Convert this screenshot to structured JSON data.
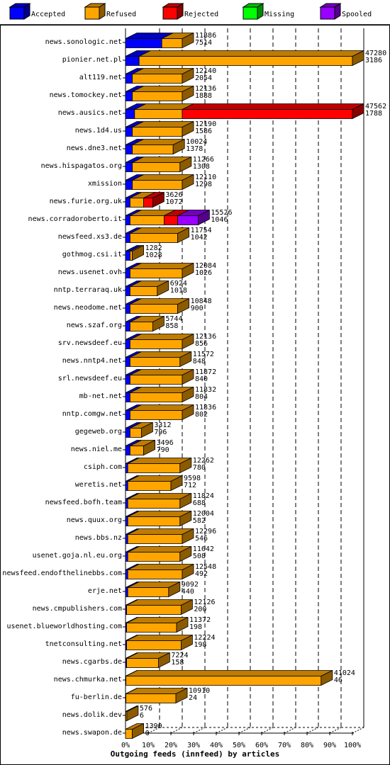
{
  "chart_data": {
    "type": "bar",
    "orientation": "horizontal",
    "stacked": true,
    "xlabel": "Outgoing feeds (innfeed) by articles",
    "xlim": [
      0,
      100
    ],
    "x_ticks": [
      "0%",
      "10%",
      "20%",
      "30%",
      "40%",
      "50%",
      "60%",
      "70%",
      "80%",
      "90%",
      "100%"
    ],
    "legend_position": "top",
    "series": [
      {
        "name": "Accepted",
        "color": "#0000ff"
      },
      {
        "name": "Refused",
        "color": "#ffa500"
      },
      {
        "name": "Rejected",
        "color": "#ff0000"
      },
      {
        "name": "Missing",
        "color": "#00ff00"
      },
      {
        "name": "Spooled",
        "color": "#9900ff"
      }
    ],
    "rows": [
      {
        "host": "news.sonologic.net",
        "offered": "11886",
        "accepted": "7514",
        "pct": [
          16,
          9,
          0,
          0,
          0
        ]
      },
      {
        "host": "pionier.net.pl",
        "offered": "47280",
        "accepted": "3186",
        "pct": [
          6,
          94,
          0,
          0,
          0
        ]
      },
      {
        "host": "alt119.net",
        "offered": "12140",
        "accepted": "2054",
        "pct": [
          3,
          22,
          0,
          0,
          0
        ]
      },
      {
        "host": "news.tomockey.net",
        "offered": "12136",
        "accepted": "1888",
        "pct": [
          3,
          22,
          0,
          0,
          0
        ]
      },
      {
        "host": "news.ausics.net",
        "offered": "47562",
        "accepted": "1788",
        "pct": [
          4,
          21,
          75,
          0,
          0
        ]
      },
      {
        "host": "news.1d4.us",
        "offered": "12190",
        "accepted": "1586",
        "pct": [
          3,
          22,
          0,
          0,
          0
        ]
      },
      {
        "host": "news.dne3.net",
        "offered": "10024",
        "accepted": "1378",
        "pct": [
          3,
          18,
          0,
          0,
          0
        ]
      },
      {
        "host": "news.hispagatos.org",
        "offered": "11266",
        "accepted": "1308",
        "pct": [
          3,
          21,
          0,
          0,
          0
        ]
      },
      {
        "host": "xmission",
        "offered": "12110",
        "accepted": "1298",
        "pct": [
          3,
          22,
          0,
          0,
          0
        ]
      },
      {
        "host": "news.furie.org.uk",
        "offered": "3626",
        "accepted": "1072",
        "pct": [
          2,
          6,
          4,
          0,
          0
        ]
      },
      {
        "host": "news.corradoroberto.it",
        "offered": "15526",
        "accepted": "1046",
        "pct": [
          2,
          15,
          6,
          0,
          9
        ]
      },
      {
        "host": "newsfeed.xs3.de",
        "offered": "11754",
        "accepted": "1042",
        "pct": [
          2,
          21,
          0,
          0,
          0
        ]
      },
      {
        "host": "gothmog.csi.it",
        "offered": "1282",
        "accepted": "1028",
        "pct": [
          2,
          1,
          0,
          0,
          0
        ]
      },
      {
        "host": "news.usenet.ovh",
        "offered": "12084",
        "accepted": "1026",
        "pct": [
          2,
          23,
          0,
          0,
          0
        ]
      },
      {
        "host": "nntp.terraraq.uk",
        "offered": "6924",
        "accepted": "1018",
        "pct": [
          2,
          12,
          0,
          0,
          0
        ]
      },
      {
        "host": "news.neodome.net",
        "offered": "10848",
        "accepted": "900",
        "pct": [
          2,
          21,
          0,
          0,
          0
        ]
      },
      {
        "host": "news.szaf.org",
        "offered": "5744",
        "accepted": "858",
        "pct": [
          2,
          10,
          0,
          0,
          0
        ]
      },
      {
        "host": "srv.newsdeef.eu",
        "offered": "12136",
        "accepted": "856",
        "pct": [
          2,
          23,
          0,
          0,
          0
        ]
      },
      {
        "host": "news.nntp4.net",
        "offered": "11572",
        "accepted": "848",
        "pct": [
          2,
          22,
          0,
          0,
          0
        ]
      },
      {
        "host": "srl.newsdeef.eu",
        "offered": "11872",
        "accepted": "840",
        "pct": [
          2,
          23,
          0,
          0,
          0
        ]
      },
      {
        "host": "mb-net.net",
        "offered": "11832",
        "accepted": "804",
        "pct": [
          2,
          23,
          0,
          0,
          0
        ]
      },
      {
        "host": "nntp.comgw.net",
        "offered": "11836",
        "accepted": "802",
        "pct": [
          2,
          23,
          0,
          0,
          0
        ]
      },
      {
        "host": "gegeweb.org",
        "offered": "3312",
        "accepted": "796",
        "pct": [
          2,
          5,
          0,
          0,
          0
        ]
      },
      {
        "host": "news.niel.me",
        "offered": "3496",
        "accepted": "790",
        "pct": [
          2,
          6,
          0,
          0,
          0
        ]
      },
      {
        "host": "csiph.com",
        "offered": "12262",
        "accepted": "780",
        "pct": [
          1,
          23,
          0,
          0,
          0
        ]
      },
      {
        "host": "weretis.net",
        "offered": "9598",
        "accepted": "712",
        "pct": [
          1,
          19,
          0,
          0,
          0
        ]
      },
      {
        "host": "newsfeed.bofh.team",
        "offered": "11824",
        "accepted": "688",
        "pct": [
          1,
          23,
          0,
          0,
          0
        ]
      },
      {
        "host": "news.quux.org",
        "offered": "12004",
        "accepted": "582",
        "pct": [
          1,
          23,
          0,
          0,
          0
        ]
      },
      {
        "host": "news.bbs.nz",
        "offered": "12296",
        "accepted": "546",
        "pct": [
          1,
          24,
          0,
          0,
          0
        ]
      },
      {
        "host": "usenet.goja.nl.eu.org",
        "offered": "11642",
        "accepted": "508",
        "pct": [
          1,
          23,
          0,
          0,
          0
        ]
      },
      {
        "host": "newsfeed.endofthelinebbs.com",
        "offered": "12548",
        "accepted": "492",
        "pct": [
          1,
          24,
          0,
          0,
          0
        ]
      },
      {
        "host": "erje.net",
        "offered": "9092",
        "accepted": "440",
        "pct": [
          1,
          18,
          0,
          0,
          0
        ]
      },
      {
        "host": "news.cmpublishers.com",
        "offered": "12126",
        "accepted": "200",
        "pct": [
          0.5,
          24,
          0,
          0,
          0
        ]
      },
      {
        "host": "usenet.blueworldhosting.com",
        "offered": "11372",
        "accepted": "198",
        "pct": [
          0.5,
          22,
          0,
          0,
          0
        ]
      },
      {
        "host": "tnetconsulting.net",
        "offered": "12224",
        "accepted": "198",
        "pct": [
          0.5,
          24,
          0,
          0,
          0
        ]
      },
      {
        "host": "news.cgarbs.de",
        "offered": "7224",
        "accepted": "158",
        "pct": [
          0.5,
          14,
          0,
          0,
          0
        ]
      },
      {
        "host": "news.chmurka.net",
        "offered": "41024",
        "accepted": "46",
        "pct": [
          0.2,
          86,
          0,
          0,
          0
        ]
      },
      {
        "host": "fu-berlin.de",
        "offered": "10910",
        "accepted": "24",
        "pct": [
          0.2,
          22,
          0,
          0,
          0
        ]
      },
      {
        "host": "news.dolik.dev",
        "offered": "576",
        "accepted": "6",
        "pct": [
          0.1,
          0.5,
          0,
          0,
          0
        ]
      },
      {
        "host": "news.swapon.de",
        "offered": "1390",
        "accepted": "0",
        "pct": [
          0,
          3,
          0,
          0,
          0
        ]
      }
    ]
  }
}
